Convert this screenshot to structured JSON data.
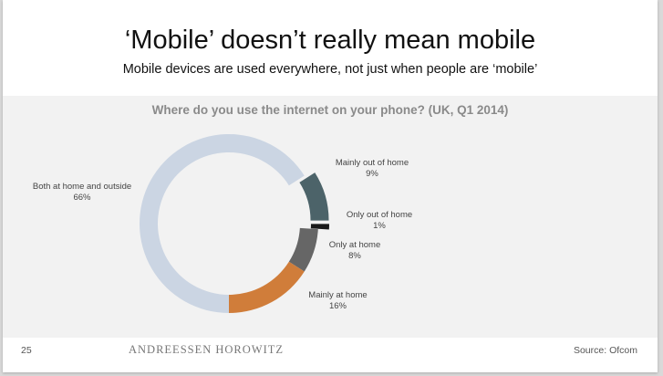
{
  "slide": {
    "title": "‘Mobile’ doesn’t really mean mobile",
    "subtitle": "Mobile devices are used everywhere, not just when people are ‘mobile’",
    "page_number": "25",
    "brand": "ANDREESSEN HOROWITZ",
    "source": "Source: Ofcom"
  },
  "chart_data": {
    "type": "pie",
    "donut": true,
    "title": "Where do you use the internet on your phone? (UK, Q1 2014)",
    "slices": [
      {
        "label": "Both at home and outside",
        "value": 66,
        "value_label": "66%",
        "color": "#cbd5e3",
        "exploded": false
      },
      {
        "label": "Mainly out of home",
        "value": 9,
        "value_label": "9%",
        "color": "#4c6369",
        "exploded": true
      },
      {
        "label": "Only out of home",
        "value": 1,
        "value_label": "1%",
        "color": "#1a1a1a",
        "exploded": true
      },
      {
        "label": "Only at home",
        "value": 8,
        "value_label": "8%",
        "color": "#666666",
        "exploded": false
      },
      {
        "label": "Mainly at home",
        "value": 16,
        "value_label": "16%",
        "color": "#d07d3a",
        "exploded": false
      }
    ]
  }
}
